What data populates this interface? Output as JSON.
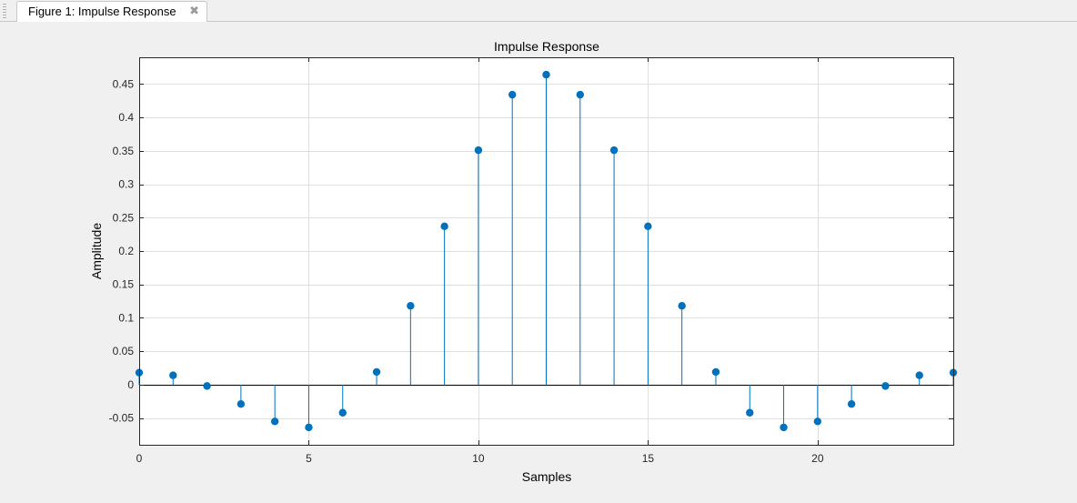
{
  "tab": {
    "label": "Figure 1: Impulse Response",
    "close_icon": "close-icon"
  },
  "colors": {
    "stem": "#0072bd",
    "grid": "#dfdfdf",
    "axes": "#262626",
    "figure_bg": "#f0f0f0",
    "axes_bg": "#ffffff"
  },
  "chart_data": {
    "type": "stem",
    "title": "Impulse Response",
    "xlabel": "Samples",
    "ylabel": "Amplitude",
    "xlim": [
      0,
      24
    ],
    "ylim": [
      -0.09,
      0.49
    ],
    "xticks": [
      0,
      5,
      10,
      15,
      20
    ],
    "xtick_labels": [
      "0",
      "5",
      "10",
      "15",
      "20"
    ],
    "yticks": [
      -0.05,
      0,
      0.05,
      0.1,
      0.15,
      0.2,
      0.25,
      0.3,
      0.35,
      0.4,
      0.45
    ],
    "ytick_labels": [
      "-0.05",
      "0",
      "0.05",
      "0.1",
      "0.15",
      "0.2",
      "0.25",
      "0.3",
      "0.35",
      "0.4",
      "0.45"
    ],
    "grid": true,
    "x": [
      0,
      1,
      2,
      3,
      4,
      5,
      6,
      7,
      8,
      9,
      10,
      11,
      12,
      13,
      14,
      15,
      16,
      17,
      18,
      19,
      20,
      21,
      22,
      23,
      24
    ],
    "values": [
      0.018,
      0.014,
      -0.002,
      -0.029,
      -0.055,
      -0.064,
      -0.042,
      0.019,
      0.118,
      0.237,
      0.351,
      0.434,
      0.464,
      0.434,
      0.351,
      0.237,
      0.118,
      0.019,
      -0.042,
      -0.064,
      -0.055,
      -0.029,
      -0.002,
      0.014,
      0.018
    ]
  }
}
